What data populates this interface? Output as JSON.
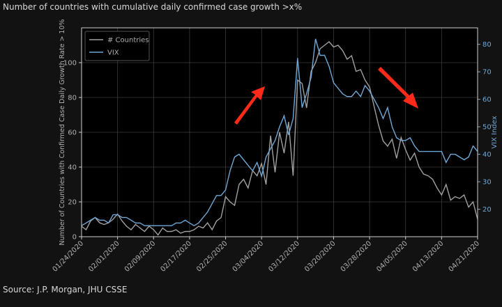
{
  "chart_data": {
    "type": "line",
    "title": "Number of countries with cumulative daily confirmed case growth >x%",
    "ylabel": "Number of Countries with Confirmed Case Daily Growth Rate > 10%",
    "y2label": "VIX Index",
    "source": "Source: J.P. Morgan, JHU CSSE",
    "x": [
      "01/24/2020",
      "01/25/2020",
      "01/26/2020",
      "01/27/2020",
      "01/28/2020",
      "01/29/2020",
      "01/30/2020",
      "01/31/2020",
      "02/01/2020",
      "02/02/2020",
      "02/03/2020",
      "02/04/2020",
      "02/05/2020",
      "02/06/2020",
      "02/07/2020",
      "02/08/2020",
      "02/09/2020",
      "02/10/2020",
      "02/11/2020",
      "02/12/2020",
      "02/13/2020",
      "02/14/2020",
      "02/15/2020",
      "02/16/2020",
      "02/17/2020",
      "02/18/2020",
      "02/19/2020",
      "02/20/2020",
      "02/21/2020",
      "02/22/2020",
      "02/23/2020",
      "02/24/2020",
      "02/25/2020",
      "02/26/2020",
      "02/27/2020",
      "02/28/2020",
      "02/29/2020",
      "03/01/2020",
      "03/02/2020",
      "03/03/2020",
      "03/04/2020",
      "03/05/2020",
      "03/06/2020",
      "03/07/2020",
      "03/08/2020",
      "03/09/2020",
      "03/10/2020",
      "03/11/2020",
      "03/12/2020",
      "03/13/2020",
      "03/14/2020",
      "03/15/2020",
      "03/16/2020",
      "03/17/2020",
      "03/18/2020",
      "03/19/2020",
      "03/20/2020",
      "03/21/2020",
      "03/22/2020",
      "03/23/2020",
      "03/24/2020",
      "03/25/2020",
      "03/26/2020",
      "03/27/2020",
      "03/28/2020",
      "03/29/2020",
      "03/30/2020",
      "03/31/2020",
      "04/01/2020",
      "04/02/2020",
      "04/03/2020",
      "04/04/2020",
      "04/05/2020",
      "04/06/2020",
      "04/07/2020",
      "04/08/2020",
      "04/09/2020",
      "04/10/2020",
      "04/11/2020",
      "04/12/2020",
      "04/13/2020",
      "04/14/2020",
      "04/15/2020",
      "04/16/2020",
      "04/17/2020",
      "04/18/2020",
      "04/19/2020",
      "04/20/2020",
      "04/21/2020"
    ],
    "xticks": [
      "01/24/2020",
      "02/01/2020",
      "02/09/2020",
      "02/17/2020",
      "02/25/2020",
      "03/04/2020",
      "03/12/2020",
      "03/20/2020",
      "03/28/2020",
      "04/05/2020",
      "04/13/2020",
      "04/21/2020"
    ],
    "ylim": [
      0,
      120
    ],
    "yticks": [
      0,
      20,
      40,
      60,
      80,
      100
    ],
    "y2lim": [
      10,
      86
    ],
    "y2ticks": [
      20,
      30,
      40,
      50,
      60,
      70,
      80
    ],
    "grid": true,
    "legend": "upper left",
    "series": [
      {
        "name": "# Countries",
        "color": "#a0a0a0",
        "values": [
          6,
          4,
          9,
          11,
          8,
          7,
          8,
          10,
          13,
          9,
          6,
          4,
          7,
          5,
          3,
          6,
          4,
          1,
          5,
          3,
          3,
          4,
          2,
          3,
          3,
          4,
          6,
          5,
          8,
          4,
          9,
          11,
          23,
          20,
          18,
          30,
          33,
          28,
          38,
          35,
          42,
          30,
          58,
          37,
          60,
          48,
          66,
          35,
          90,
          88,
          74,
          95,
          100,
          108,
          110,
          112,
          109,
          110,
          107,
          102,
          104,
          95,
          96,
          90,
          86,
          75,
          64,
          55,
          52,
          56,
          45,
          57,
          50,
          44,
          48,
          40,
          36,
          35,
          33,
          28,
          24,
          30,
          21,
          23,
          22,
          24,
          17,
          20,
          10
        ]
      },
      {
        "name": "VIX",
        "color": "#6fa8d6",
        "axis": "y2",
        "values": [
          14,
          15,
          16,
          17,
          16,
          16,
          15,
          18,
          18,
          17,
          17,
          16,
          15,
          15,
          14,
          14,
          14,
          14,
          14,
          14,
          14,
          15,
          15,
          16,
          15,
          14,
          15,
          17,
          19,
          22,
          25,
          25,
          27,
          34,
          39,
          40,
          38,
          36,
          34,
          37,
          32,
          39,
          42,
          45,
          50,
          54,
          47,
          53,
          75,
          57,
          62,
          68,
          82,
          76,
          76,
          72,
          66,
          64,
          62,
          61,
          61,
          63,
          61,
          65,
          63,
          60,
          57,
          53,
          57,
          50,
          46,
          45,
          45,
          46,
          43,
          41,
          41,
          41,
          41,
          41,
          41,
          37,
          40,
          40,
          39,
          38,
          39,
          43,
          41
        ]
      }
    ]
  }
}
